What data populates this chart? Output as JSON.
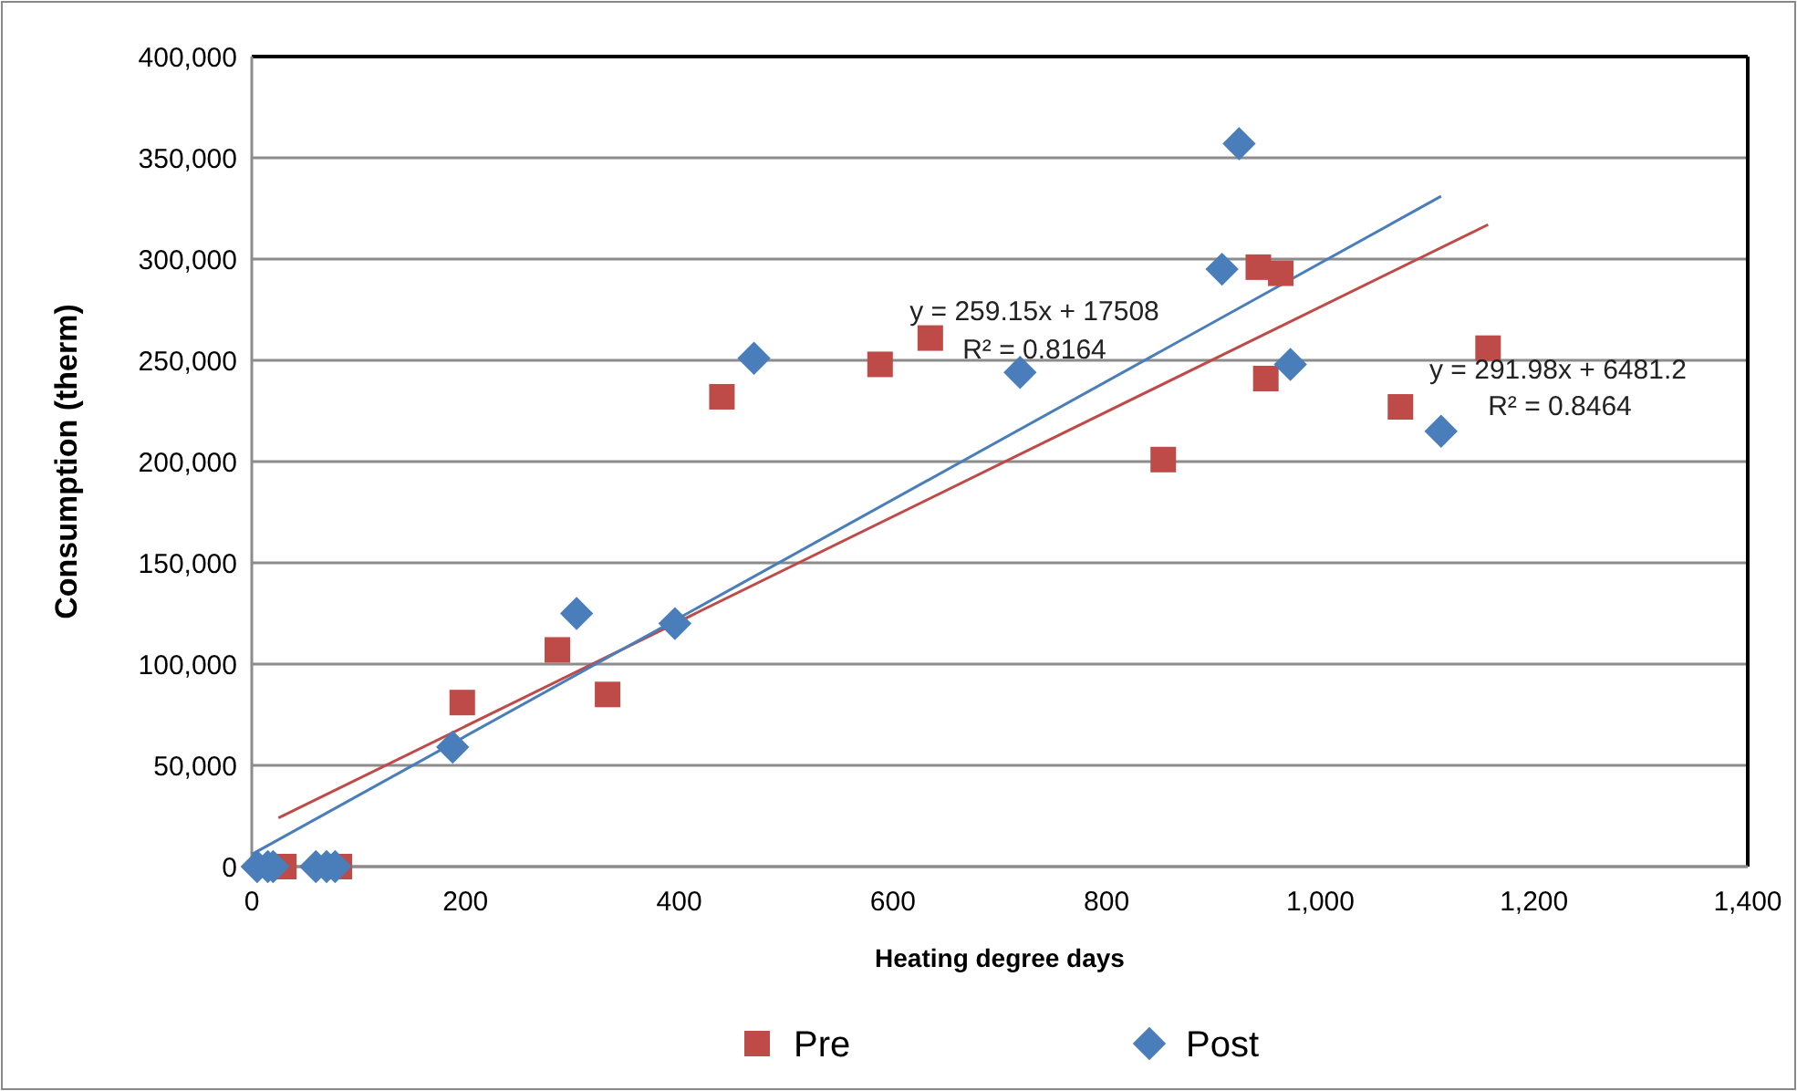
{
  "chart_data": {
    "type": "scatter",
    "xlabel": "Heating degree days",
    "ylabel": "Consumption (therm)",
    "xlim": [
      0,
      1400
    ],
    "ylim": [
      0,
      400000
    ],
    "xticks": [
      0,
      200,
      400,
      600,
      800,
      {
        "value": 1000,
        "label": "1,000"
      },
      {
        "value": 1200,
        "label": "1,200"
      },
      {
        "value": 1400,
        "label": "1,400"
      }
    ],
    "yticks": [
      0,
      {
        "value": 50000,
        "label": "50,000"
      },
      {
        "value": 100000,
        "label": "100,000"
      },
      {
        "value": 150000,
        "label": "150,000"
      },
      {
        "value": 200000,
        "label": "200,000"
      },
      {
        "value": 250000,
        "label": "250,000"
      },
      {
        "value": 300000,
        "label": "300,000"
      },
      {
        "value": 350000,
        "label": "350,000"
      },
      {
        "value": 400000,
        "label": "400,000"
      }
    ],
    "grid": "y",
    "legend": "bottom",
    "series": [
      {
        "name": "Pre",
        "marker": "square",
        "color": "#be4b48",
        "x": [
          30,
          82,
          197,
          286,
          333,
          440,
          588,
          635,
          853,
          942,
          963,
          949,
          1075,
          1157
        ],
        "values": [
          0,
          0,
          81000,
          107000,
          85000,
          232000,
          248000,
          261000,
          201000,
          296000,
          293000,
          241000,
          227000,
          256000
        ]
      },
      {
        "name": "Post",
        "marker": "diamond",
        "color": "#4a7ebb",
        "x": [
          5,
          15,
          20,
          60,
          70,
          78,
          188,
          304,
          396,
          470,
          719,
          908,
          924,
          972,
          1113
        ],
        "values": [
          0,
          0,
          0,
          0,
          0,
          0,
          59000,
          125000,
          120000,
          251000,
          244000,
          295000,
          357000,
          248000,
          215000
        ]
      },
      {
        "type": "line",
        "color": "#be4b48",
        "x": [
          25,
          1157
        ],
        "values": [
          24000,
          317000
        ]
      },
      {
        "type": "line",
        "color": "#4a7ebb",
        "x": [
          0,
          1113
        ],
        "values": [
          6000,
          331000
        ]
      }
    ],
    "annotations": [
      "y = 259.15x + 17508",
      "R² = 0.8164",
      "y = 291.98x + 6481.2",
      "R² = 0.8464"
    ]
  }
}
